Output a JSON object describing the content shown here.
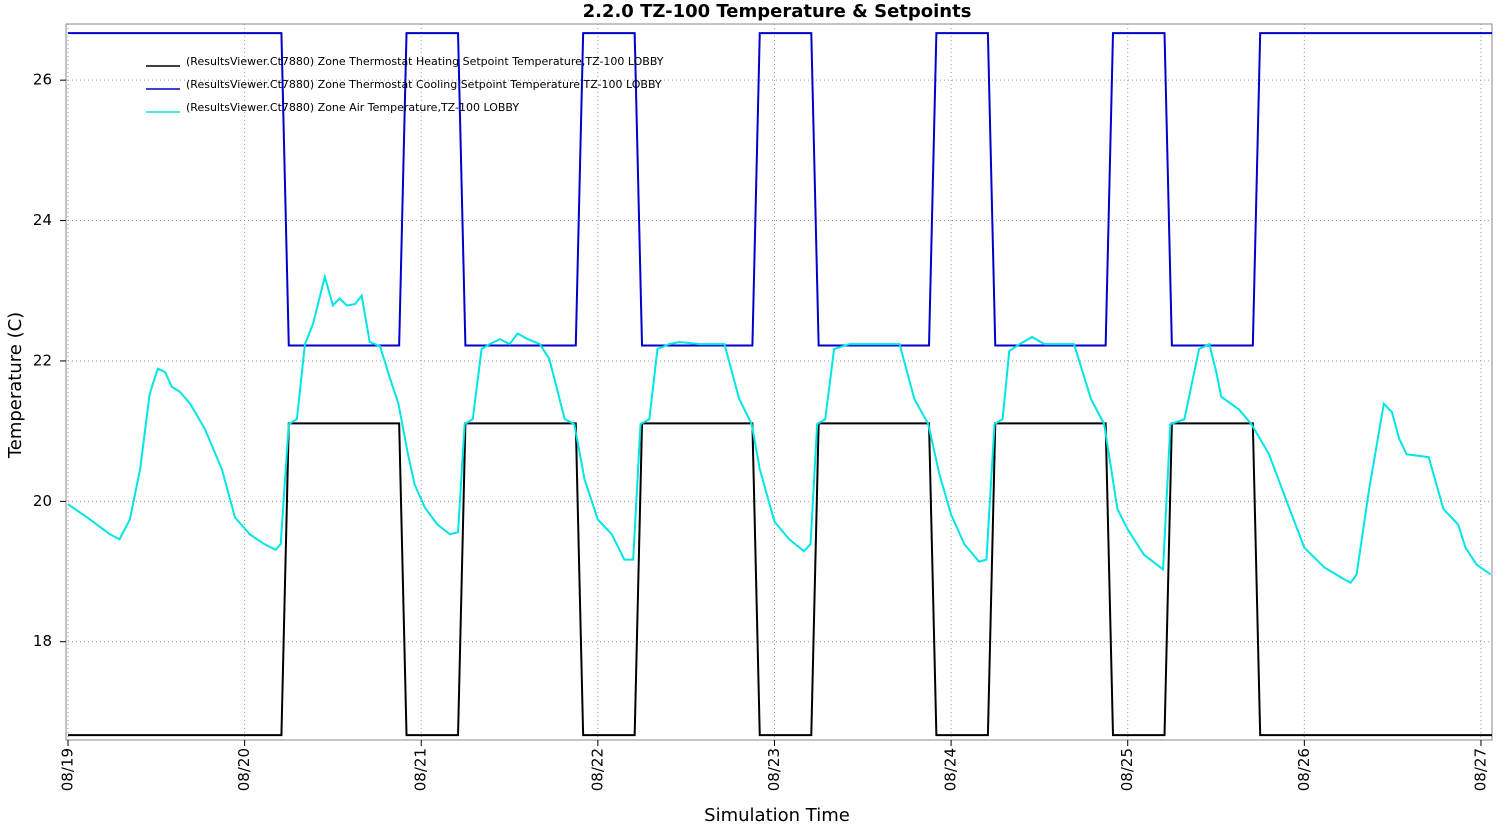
{
  "chart_data": {
    "type": "line",
    "title": "2.2.0 TZ-100 Temperature & Setpoints",
    "xlabel": "Simulation Time",
    "ylabel": "Temperature (C)",
    "xlim": [
      0,
      193.5
    ],
    "ylim": [
      16.6,
      26.8
    ],
    "xticks": [
      {
        "value": 0,
        "label": "08/19"
      },
      {
        "value": 24,
        "label": "08/20"
      },
      {
        "value": 48,
        "label": "08/21"
      },
      {
        "value": 72,
        "label": "08/22"
      },
      {
        "value": 96,
        "label": "08/23"
      },
      {
        "value": 120,
        "label": "08/24"
      },
      {
        "value": 144,
        "label": "08/25"
      },
      {
        "value": 168,
        "label": "08/26"
      },
      {
        "value": 192,
        "label": "08/27"
      }
    ],
    "yticks": [
      18,
      20,
      22,
      24,
      26
    ],
    "grid": true,
    "legend": "upper left",
    "series": [
      {
        "name": "(ResultsViewer.Ct7880) Zone Thermostat Heating Setpoint Temperature,TZ-100 LOBBY",
        "color": "#000000",
        "x": [
          0,
          29,
          30,
          45,
          46,
          53,
          54,
          69,
          70,
          77,
          78,
          93,
          94,
          101,
          102,
          117,
          118,
          125,
          126,
          141,
          142,
          149,
          150,
          161,
          162,
          193.5
        ],
        "values": [
          16.67,
          16.67,
          21.11,
          21.11,
          16.67,
          16.67,
          21.11,
          21.11,
          16.67,
          16.67,
          21.11,
          21.11,
          16.67,
          16.67,
          21.11,
          21.11,
          16.67,
          16.67,
          21.11,
          21.11,
          16.67,
          16.67,
          21.11,
          21.11,
          16.67,
          16.67
        ]
      },
      {
        "name": "(ResultsViewer.Ct7880) Zone Thermostat Cooling Setpoint Temperature,TZ-100 LOBBY",
        "color": "#0000cc",
        "x": [
          0,
          29,
          30,
          45,
          46,
          53,
          54,
          69,
          70,
          77,
          78,
          93,
          94,
          101,
          102,
          117,
          118,
          125,
          126,
          141,
          142,
          149,
          150,
          161,
          162,
          193.5
        ],
        "values": [
          26.67,
          26.67,
          22.22,
          22.22,
          26.67,
          26.67,
          22.22,
          22.22,
          26.67,
          26.67,
          22.22,
          22.22,
          26.67,
          26.67,
          22.22,
          22.22,
          26.67,
          26.67,
          22.22,
          22.22,
          26.67,
          26.67,
          22.22,
          22.22,
          26.67,
          26.67
        ]
      },
      {
        "name": "(ResultsViewer.Ct7880) Zone Air Temperature,TZ-100 LOBBY",
        "color": "#00e5e5",
        "x": [
          0,
          3,
          5.7,
          7,
          8.4,
          9.8,
          11.1,
          12.2,
          13.2,
          14.1,
          15.2,
          16.6,
          18.6,
          20.9,
          22.7,
          24.7,
          26.7,
          28.2,
          28.9,
          30,
          31.1,
          32.2,
          33.3,
          34.9,
          36,
          36.9,
          37.9,
          39,
          39.9,
          41,
          42.4,
          43.7,
          44.9,
          46.2,
          47.1,
          48.5,
          50.2,
          51.9,
          53,
          53.9,
          55,
          56.2,
          57.3,
          58.7,
          60,
          61.1,
          62.5,
          64.1,
          65.4,
          67.5,
          68.8,
          70.2,
          72,
          73.9,
          75.6,
          76.8,
          77.8,
          79,
          80.1,
          81.7,
          83.1,
          85.8,
          89.2,
          91.2,
          92.9,
          94,
          96,
          98,
          100,
          100.9,
          101.8,
          102.9,
          104.1,
          106.2,
          108.9,
          113,
          115,
          116.9,
          118.4,
          120,
          121.8,
          123.8,
          124.8,
          125.9,
          127,
          127.9,
          129.3,
          131,
          132.7,
          136.7,
          139,
          140.8,
          142.6,
          144,
          146.2,
          148.8,
          149.8,
          151.7,
          153.7,
          155.1,
          156.1,
          156.7,
          159.1,
          160.8,
          163.2,
          166,
          168,
          170.7,
          173.4,
          174.3,
          175.1,
          176.8,
          178.8,
          179.9,
          180.9,
          181.9,
          184.9,
          186.9,
          188.9,
          189.9,
          191.4,
          193.3
        ],
        "values": [
          19.96,
          19.74,
          19.53,
          19.46,
          19.74,
          20.46,
          21.53,
          21.89,
          21.84,
          21.63,
          21.56,
          21.39,
          21.03,
          20.46,
          19.77,
          19.53,
          19.39,
          19.31,
          19.39,
          21.1,
          21.17,
          22.24,
          22.53,
          23.2,
          22.79,
          22.89,
          22.79,
          22.81,
          22.93,
          22.27,
          22.21,
          21.77,
          21.39,
          20.67,
          20.24,
          19.91,
          19.67,
          19.53,
          19.56,
          21.1,
          21.17,
          22.17,
          22.24,
          22.31,
          22.24,
          22.39,
          22.31,
          22.24,
          22.03,
          21.17,
          21.1,
          20.31,
          19.74,
          19.53,
          19.17,
          19.17,
          21.1,
          21.17,
          22.17,
          22.24,
          22.27,
          22.24,
          22.24,
          21.46,
          21.1,
          20.46,
          19.71,
          19.46,
          19.29,
          19.39,
          21.1,
          21.17,
          22.17,
          22.24,
          22.24,
          22.24,
          21.46,
          21.1,
          20.39,
          19.81,
          19.39,
          19.14,
          19.17,
          21.1,
          21.17,
          22.14,
          22.24,
          22.34,
          22.24,
          22.24,
          21.46,
          21.1,
          19.89,
          19.6,
          19.24,
          19.03,
          21.1,
          21.17,
          22.17,
          22.24,
          21.81,
          21.49,
          21.31,
          21.1,
          20.67,
          19.89,
          19.34,
          19.06,
          18.89,
          18.84,
          18.96,
          20.17,
          21.39,
          21.27,
          20.89,
          20.67,
          20.63,
          19.89,
          19.67,
          19.34,
          19.1,
          18.96
        ]
      }
    ]
  }
}
